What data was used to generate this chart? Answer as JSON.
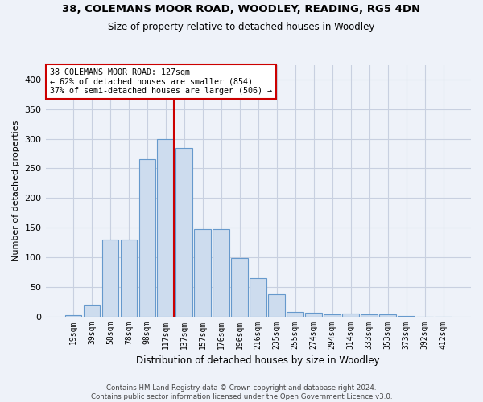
{
  "title1": "38, COLEMANS MOOR ROAD, WOODLEY, READING, RG5 4DN",
  "title2": "Size of property relative to detached houses in Woodley",
  "xlabel": "Distribution of detached houses by size in Woodley",
  "ylabel": "Number of detached properties",
  "bar_labels": [
    "19sqm",
    "39sqm",
    "58sqm",
    "78sqm",
    "98sqm",
    "117sqm",
    "137sqm",
    "157sqm",
    "176sqm",
    "196sqm",
    "216sqm",
    "235sqm",
    "255sqm",
    "274sqm",
    "294sqm",
    "314sqm",
    "333sqm",
    "353sqm",
    "373sqm",
    "392sqm",
    "412sqm"
  ],
  "bar_values": [
    2,
    20,
    130,
    130,
    265,
    300,
    285,
    147,
    147,
    98,
    65,
    38,
    8,
    6,
    4,
    5,
    4,
    3,
    1,
    0,
    0
  ],
  "bar_color": "#cddcee",
  "bar_edgecolor": "#6699cc",
  "vline_color": "#cc0000",
  "annotation_line1": "38 COLEMANS MOOR ROAD: 127sqm",
  "annotation_line2": "← 62% of detached houses are smaller (854)",
  "annotation_line3": "37% of semi-detached houses are larger (506) →",
  "annotation_box_facecolor": "#ffffff",
  "annotation_box_edgecolor": "#cc0000",
  "ylim": [
    0,
    425
  ],
  "yticks": [
    0,
    50,
    100,
    150,
    200,
    250,
    300,
    350,
    400
  ],
  "grid_color": "#c8d0e0",
  "footer1": "Contains HM Land Registry data © Crown copyright and database right 2024.",
  "footer2": "Contains public sector information licensed under the Open Government Licence v3.0.",
  "bg_color": "#eef2f9"
}
